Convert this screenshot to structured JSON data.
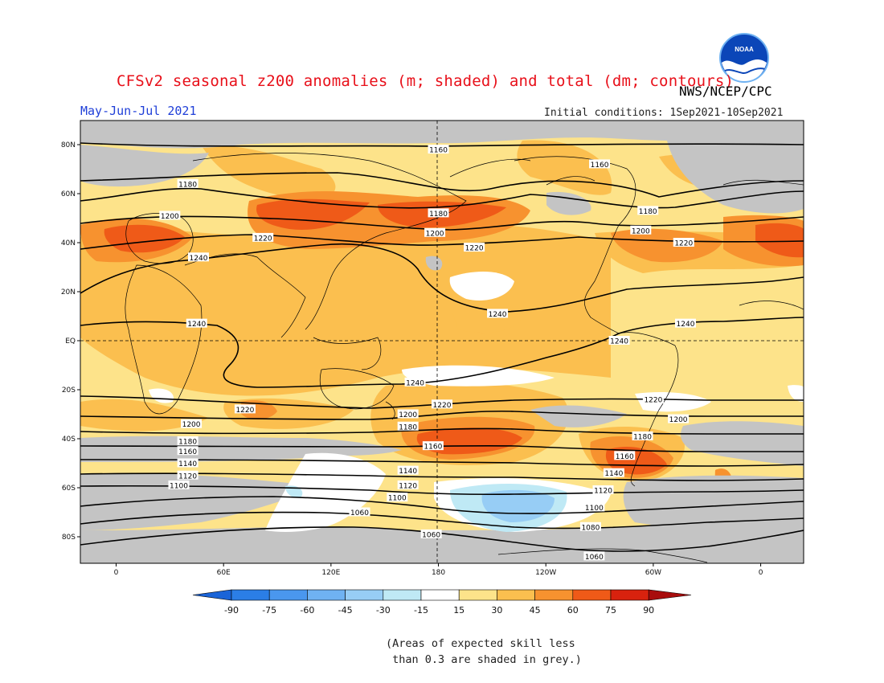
{
  "header": {
    "title": "CFSv2 seasonal z200 anomalies (m; shaded) and total (dm; contours)",
    "agency": "NWS/NCEP/CPC",
    "period": "May-Jun-Jul 2021",
    "initial_conditions": "Initial conditions: 1Sep2021-10Sep2021",
    "logo_text": "NOAA"
  },
  "axes": {
    "lat_labels": [
      "80N",
      "60N",
      "40N",
      "20N",
      "EQ",
      "20S",
      "40S",
      "60S",
      "80S"
    ],
    "lon_labels": [
      "0",
      "60E",
      "120E",
      "180",
      "120W",
      "60W",
      "0"
    ]
  },
  "contour_labels": [
    {
      "text": "1160",
      "lon": 180,
      "lat": 78
    },
    {
      "text": "1160",
      "lon": -90,
      "lat": 72
    },
    {
      "text": "1180",
      "lon": 40,
      "lat": 64
    },
    {
      "text": "1180",
      "lon": -180,
      "lat": 52
    },
    {
      "text": "1180",
      "lon": -63,
      "lat": 53
    },
    {
      "text": "1200",
      "lon": 30,
      "lat": 51
    },
    {
      "text": "1200",
      "lon": 178,
      "lat": 44
    },
    {
      "text": "1200",
      "lon": -67,
      "lat": 45
    },
    {
      "text": "1220",
      "lon": 82,
      "lat": 42
    },
    {
      "text": "1220",
      "lon": -160,
      "lat": 38
    },
    {
      "text": "1220",
      "lon": -43,
      "lat": 40
    },
    {
      "text": "1240",
      "lon": 46,
      "lat": 34
    },
    {
      "text": "1240",
      "lon": -147,
      "lat": 11
    },
    {
      "text": "1240",
      "lon": 45,
      "lat": 7
    },
    {
      "text": "1240",
      "lon": -42,
      "lat": 7
    },
    {
      "text": "1240",
      "lon": -79,
      "lat": 0
    },
    {
      "text": "1240",
      "lon": 167,
      "lat": -17
    },
    {
      "text": "1220",
      "lon": 182,
      "lat": -26
    },
    {
      "text": "1220",
      "lon": -60,
      "lat": -24
    },
    {
      "text": "1220",
      "lon": 72,
      "lat": -28
    },
    {
      "text": "1200",
      "lon": 42,
      "lat": -34
    },
    {
      "text": "1200",
      "lon": 163,
      "lat": -30
    },
    {
      "text": "1200",
      "lon": -46,
      "lat": -32
    },
    {
      "text": "1180",
      "lon": 40,
      "lat": -41
    },
    {
      "text": "1180",
      "lon": 163,
      "lat": -35
    },
    {
      "text": "1180",
      "lon": -66,
      "lat": -39
    },
    {
      "text": "1160",
      "lon": 40,
      "lat": -45
    },
    {
      "text": "1160",
      "lon": 177,
      "lat": -43
    },
    {
      "text": "1160",
      "lon": -76,
      "lat": -47
    },
    {
      "text": "1140",
      "lon": 40,
      "lat": -50
    },
    {
      "text": "1140",
      "lon": 163,
      "lat": -53
    },
    {
      "text": "1140",
      "lon": -82,
      "lat": -54
    },
    {
      "text": "1120",
      "lon": 40,
      "lat": -55
    },
    {
      "text": "1120",
      "lon": 163,
      "lat": -59
    },
    {
      "text": "1120",
      "lon": -88,
      "lat": -61
    },
    {
      "text": "1100",
      "lon": 35,
      "lat": -59
    },
    {
      "text": "1100",
      "lon": 157,
      "lat": -64
    },
    {
      "text": "1100",
      "lon": -93,
      "lat": -68
    },
    {
      "text": "1080",
      "lon": -95,
      "lat": -76
    },
    {
      "text": "1060",
      "lon": 136,
      "lat": -70
    },
    {
      "text": "1060",
      "lon": 176,
      "lat": -79
    },
    {
      "text": "1060",
      "lon": -93,
      "lat": -88
    }
  ],
  "colorbar": {
    "labels": [
      "-90",
      "-75",
      "-60",
      "-45",
      "-30",
      "-15",
      "15",
      "30",
      "45",
      "60",
      "75",
      "90"
    ],
    "colors": [
      "#1a64d8",
      "#2b7ee6",
      "#4a97ee",
      "#6fb2f2",
      "#97cdf5",
      "#bfe9f5",
      "#ffffff",
      "#fde38a",
      "#fbbf4f",
      "#f7922f",
      "#ef5a18",
      "#d8220e",
      "#a80d0d"
    ]
  },
  "footer": {
    "skill_note": "(Areas of expected skill less\n than 0.3 are shaded in grey.)"
  },
  "colors": {
    "title_red": "#e8101a",
    "period_blue": "#1f3fd8",
    "grey_skill": "#c4c4c4"
  }
}
